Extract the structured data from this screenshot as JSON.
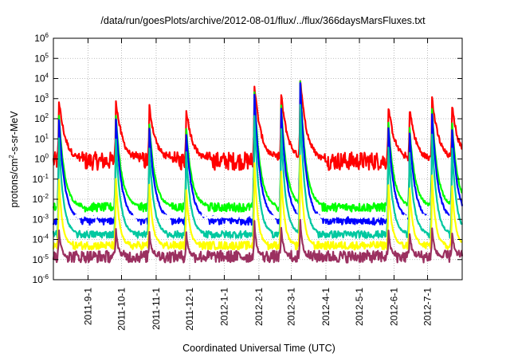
{
  "chart_data": {
    "type": "line",
    "title": "/data/run/goesPlots/archive/2012-08-01/flux/../flux/366daysMarsFluxes.txt",
    "xlabel": "Coordinated Universal Time (UTC)",
    "ylabel": "protons/cm²-s-sr-MeV",
    "ylabel_parts": [
      "protons/cm",
      "2",
      "-s-sr-MeV"
    ],
    "yscale": "log",
    "ylim_exp": [
      -6,
      6
    ],
    "yticks": [
      {
        "base": "10",
        "exp": "-6",
        "value": -6
      },
      {
        "base": "10",
        "exp": "-5",
        "value": -5
      },
      {
        "base": "10",
        "exp": "-4",
        "value": -4
      },
      {
        "base": "10",
        "exp": "-3",
        "value": -3
      },
      {
        "base": "10",
        "exp": "-2",
        "value": -2
      },
      {
        "base": "10",
        "exp": "-1",
        "value": -1
      },
      {
        "base": "10",
        "exp": "0",
        "value": 0
      },
      {
        "base": "10",
        "exp": "1",
        "value": 1
      },
      {
        "base": "10",
        "exp": "2",
        "value": 2
      },
      {
        "base": "10",
        "exp": "3",
        "value": 3
      },
      {
        "base": "10",
        "exp": "4",
        "value": 4
      },
      {
        "base": "10",
        "exp": "5",
        "value": 5
      },
      {
        "base": "10",
        "exp": "6",
        "value": 6
      }
    ],
    "xlim_days": [
      0,
      366
    ],
    "xticks": [
      {
        "label": "2011-9-1",
        "day": 31
      },
      {
        "label": "2011-10-1",
        "day": 61
      },
      {
        "label": "2011-11-1",
        "day": 92
      },
      {
        "label": "2011-12-1",
        "day": 122
      },
      {
        "label": "2012-1-1",
        "day": 153
      },
      {
        "label": "2012-2-1",
        "day": 184
      },
      {
        "label": "2012-3-1",
        "day": 213
      },
      {
        "label": "2012-4-1",
        "day": 244
      },
      {
        "label": "2012-5-1",
        "day": 274
      },
      {
        "label": "2012-6-1",
        "day": 305
      },
      {
        "label": "2012-7-1",
        "day": 335
      }
    ],
    "grid": true,
    "events": [
      {
        "day": 5,
        "amp": 1.0
      },
      {
        "day": 56,
        "amp": 1.0
      },
      {
        "day": 86,
        "amp": 0.9
      },
      {
        "day": 119,
        "amp": 0.85
      },
      {
        "day": 180,
        "amp": 1.25
      },
      {
        "day": 204,
        "amp": 1.1
      },
      {
        "day": 221,
        "amp": 1.35
      },
      {
        "day": 300,
        "amp": 0.9
      },
      {
        "day": 319,
        "amp": 0.85
      },
      {
        "day": 339,
        "amp": 1.05
      },
      {
        "day": 357,
        "amp": 0.9
      }
    ],
    "series": [
      {
        "color": "#ff0000",
        "base_log10": -0.1,
        "noise": 0.45,
        "peak_log10": 2.9,
        "width_days": 6
      },
      {
        "color": "#00ff00",
        "base_log10": -2.4,
        "noise": 0.22,
        "peak_log10": 2.2,
        "width_days": 5
      },
      {
        "color": "#0000ff",
        "base_log10": -3.05,
        "noise": 0.22,
        "peak_log10": 2.0,
        "width_days": 5
      },
      {
        "color": "#ffffff",
        "base_log10": -2.85,
        "noise": 0.1,
        "peak_log10": 0.5,
        "width_days": 3
      },
      {
        "color": "#00c8a0",
        "base_log10": -3.75,
        "noise": 0.18,
        "peak_log10": 1.0,
        "width_days": 4
      },
      {
        "color": "#ffff00",
        "base_log10": -4.3,
        "noise": 0.2,
        "peak_log10": -1.0,
        "width_days": 3
      },
      {
        "color": "#9b3060",
        "base_log10": -4.85,
        "noise": 0.3,
        "peak_log10": -3.5,
        "width_days": 2
      }
    ]
  }
}
